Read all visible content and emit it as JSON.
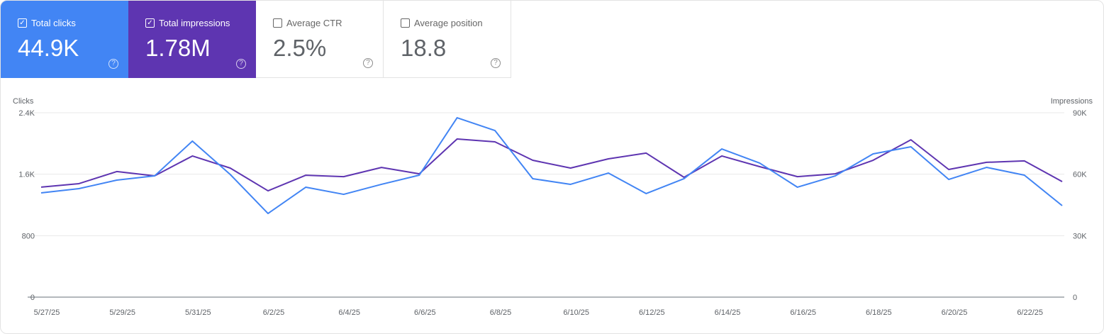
{
  "metrics": [
    {
      "label": "Total clicks",
      "value": "44.9K",
      "checked": true,
      "color": "#4285f4"
    },
    {
      "label": "Total impressions",
      "value": "1.78M",
      "checked": true,
      "color": "#5e35b1"
    },
    {
      "label": "Average CTR",
      "value": "2.5%",
      "checked": false
    },
    {
      "label": "Average position",
      "value": "18.8",
      "checked": false
    }
  ],
  "chart_data": {
    "type": "line",
    "left_axis_label": "Clicks",
    "right_axis_label": "Impressions",
    "left_ticks": [
      "0",
      "800",
      "1.6K",
      "2.4K"
    ],
    "right_ticks": [
      "0",
      "30K",
      "60K",
      "90K"
    ],
    "ylim_left": [
      0,
      2400
    ],
    "ylim_right": [
      0,
      90000
    ],
    "grid": true,
    "x": [
      "5/27/25",
      "5/28/25",
      "5/29/25",
      "5/30/25",
      "5/31/25",
      "6/1/25",
      "6/2/25",
      "6/3/25",
      "6/4/25",
      "6/5/25",
      "6/6/25",
      "6/7/25",
      "6/8/25",
      "6/9/25",
      "6/10/25",
      "6/11/25",
      "6/12/25",
      "6/13/25",
      "6/14/25",
      "6/15/25",
      "6/16/25",
      "6/17/25",
      "6/18/25",
      "6/19/25",
      "6/20/25",
      "6/21/25",
      "6/22/25",
      "6/23/25"
    ],
    "x_tick_labels": [
      "5/27/25",
      "5/29/25",
      "5/31/25",
      "6/2/25",
      "6/4/25",
      "6/6/25",
      "6/8/25",
      "6/10/25",
      "6/12/25",
      "6/14/25",
      "6/16/25",
      "6/18/25",
      "6/20/25",
      "6/22/25"
    ],
    "series": [
      {
        "name": "Clicks",
        "axis": "left",
        "color": "#4285f4",
        "values": [
          1357,
          1412,
          1523,
          1578,
          2031,
          1597,
          1089,
          1431,
          1338,
          1468,
          1588,
          2335,
          2169,
          1542,
          1468,
          1615,
          1348,
          1542,
          1929,
          1745,
          1431,
          1578,
          1865,
          1957,
          1532,
          1689,
          1588,
          1191
        ]
      },
      {
        "name": "Impressions",
        "axis": "right",
        "color": "#5e35b1",
        "values": [
          53700,
          55400,
          61300,
          59200,
          68900,
          63000,
          51900,
          59500,
          58800,
          63300,
          60200,
          77200,
          75800,
          66800,
          63000,
          67500,
          70300,
          58500,
          68900,
          63700,
          58800,
          60200,
          66800,
          76800,
          62300,
          65800,
          66500,
          56400
        ]
      }
    ]
  }
}
